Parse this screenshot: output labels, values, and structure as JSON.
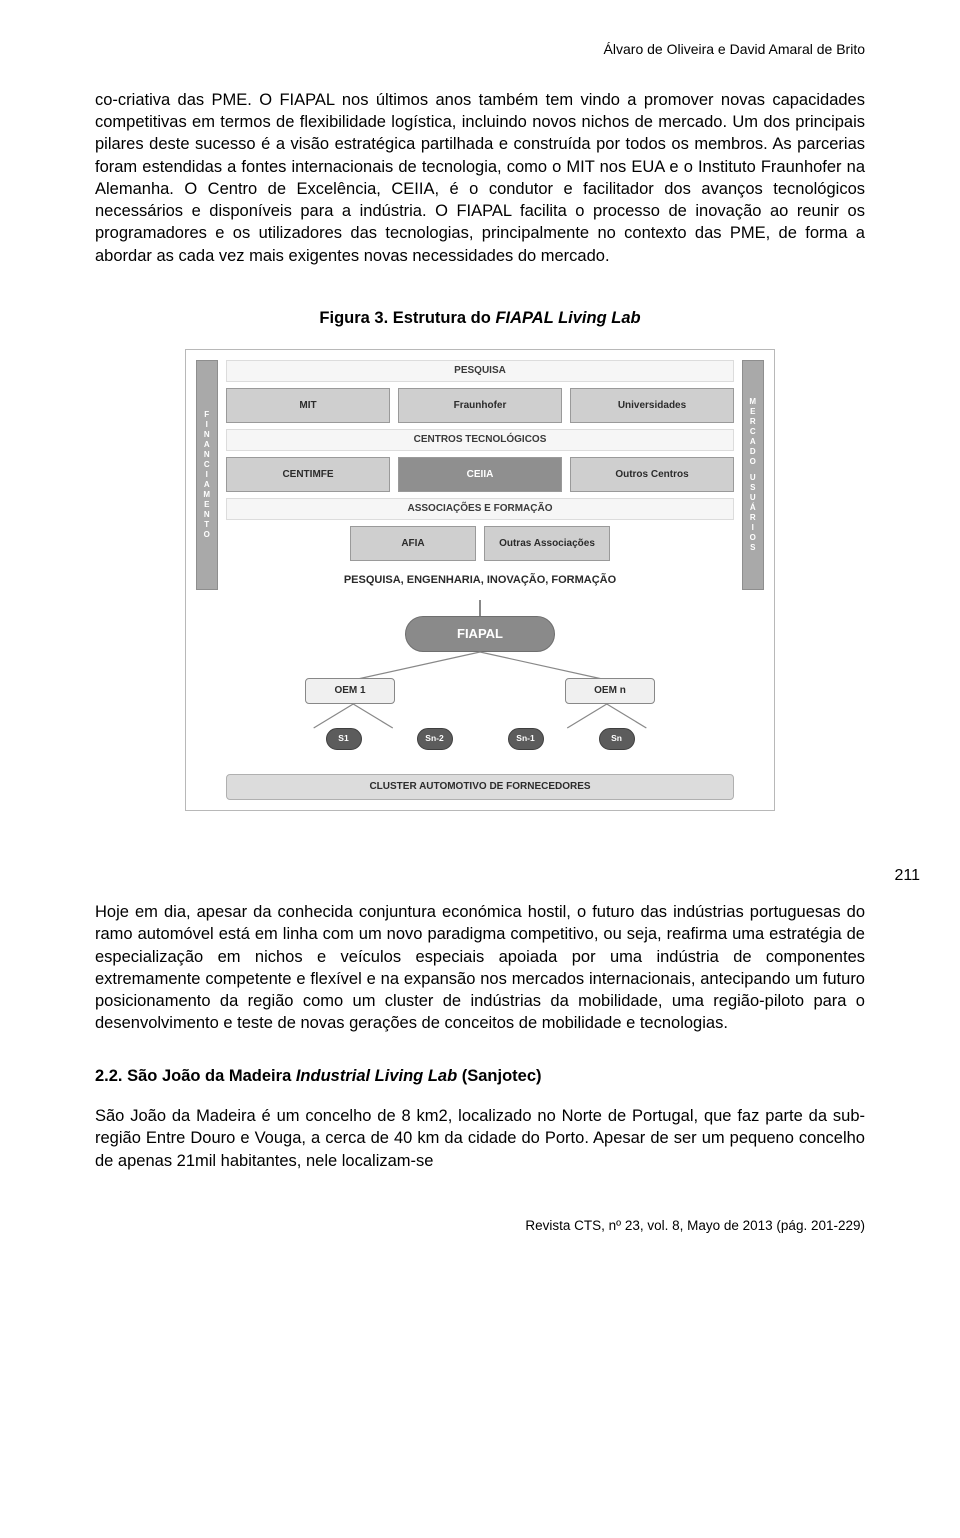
{
  "header": {
    "authors": "Álvaro de Oliveira e David Amaral de Brito"
  },
  "para1": "co-criativa das PME. O FIAPAL nos últimos anos também tem vindo a promover novas capacidades competitivas em termos de flexibilidade logística, incluindo novos nichos de mercado. Um dos principais pilares deste sucesso é a visão estratégica partilhada e construída por todos os membros. As parcerias foram estendidas a fontes internacionais de tecnologia, como o MIT nos EUA e o Instituto Fraunhofer na Alemanha. O Centro de Excelência, CEIIA, é o condutor e facilitador dos avanços tecnológicos necessários e disponíveis para a indústria. O FIAPAL facilita o processo de inovação ao reunir os programadores e os utilizadores das tecnologias, principalmente no contexto das PME, de forma a abordar as cada vez mais exigentes novas necessidades do mercado.",
  "figure": {
    "caption_prefix": "Figura 3. Estrutura do ",
    "caption_italic": "FIAPAL Living Lab",
    "left_pillar": "FINANCIAMENTO",
    "right_pillar_1": "MERCADO",
    "right_pillar_2": "USUÁRIOS",
    "row1_label": "PESQUISA",
    "row1": [
      "MIT",
      "Fraunhofer",
      "Universidades"
    ],
    "row2_label": "CENTROS TECNOLÓGICOS",
    "row2": [
      "CENTIMFE",
      "CEIIA",
      "Outros Centros"
    ],
    "row2_dark_index": 1,
    "row3_label": "ASSOCIAÇÕES E FORMAÇÃO",
    "row3": [
      "AFIA",
      "Outras Associações"
    ],
    "bottom_band": "PESQUISA, ENGENHARIA, INOVAÇÃO, FORMAÇÃO",
    "fiapal": "FIAPAL",
    "oem": [
      "OEM 1",
      "OEM n"
    ],
    "snodes": [
      "S1",
      "Sn-2",
      "Sn-1",
      "Sn"
    ],
    "cluster": "CLUSTER AUTOMOTIVO DE FORNECEDORES",
    "colors": {
      "border": "#b8b8b8",
      "pillar_bg": "#a9a9a9",
      "box_bg": "#cfcfcf",
      "box_dark_bg": "#8f8f8f",
      "fiapal_bg": "#8a8a8a",
      "snode_bg": "#5c5c5c",
      "cluster_bg": "#dcdcdc"
    }
  },
  "page_number_side": "211",
  "para2": "Hoje em dia, apesar da conhecida conjuntura económica hostil, o futuro das indústrias portuguesas do ramo automóvel está em linha com um novo paradigma competitivo, ou seja, reafirma uma estratégia de especialização em nichos e veículos especiais apoiada por uma indústria de componentes extremamente competente e flexível e na expansão nos mercados internacionais, antecipando um futuro posicionamento da região como um cluster de indústrias da mobilidade, uma região-piloto para o desenvolvimento e teste de novas gerações de conceitos de mobilidade e tecnologias.",
  "section": {
    "number": "2.2. São João da Madeira ",
    "italic": "Industrial Living Lab",
    "suffix": " (Sanjotec)"
  },
  "para3": "São João da Madeira é um concelho de 8 km2, localizado no Norte de Portugal, que faz parte da sub-região Entre Douro e Vouga, a cerca de 40 km da cidade do Porto. Apesar de ser um pequeno concelho de apenas 21mil habitantes, nele localizam-se",
  "footer": "Revista CTS, nº 23, vol. 8, Mayo de 2013 (pág. 201-229)"
}
